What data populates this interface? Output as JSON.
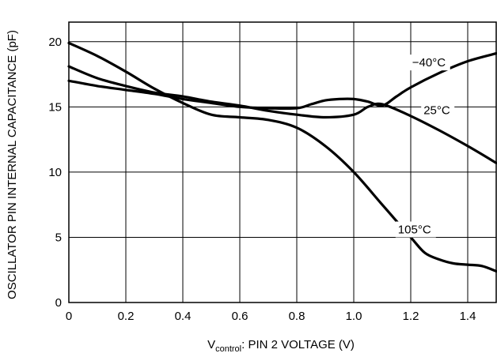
{
  "chart_data": {
    "type": "line",
    "title": "",
    "xlabel": {
      "main": "V",
      "sub": "control",
      "rest": ": PIN 2 VOLTAGE (V)"
    },
    "ylabel": "OSCILLATOR PIN INTERNAL CAPACITANCE (pF)",
    "xlim": [
      0,
      1.5
    ],
    "ylim": [
      0,
      21.5
    ],
    "x_ticks": [
      0,
      0.2,
      0.4,
      0.6,
      0.8,
      1.0,
      1.2,
      1.4
    ],
    "x_tick_labels": [
      "0",
      "0.2",
      "0.4",
      "0.6",
      "0.8",
      "1.0",
      "1.2",
      "1.4"
    ],
    "y_ticks": [
      0,
      5,
      10,
      15,
      20
    ],
    "y_tick_labels": [
      "0",
      "5",
      "10",
      "15",
      "20"
    ],
    "grid": true,
    "legend": "none",
    "series": [
      {
        "name": "−40°C",
        "x": [
          0,
          0.1,
          0.2,
          0.3,
          0.4,
          0.5,
          0.6,
          0.7,
          0.8,
          0.85,
          0.9,
          0.95,
          1.0,
          1.05,
          1.1,
          1.15,
          1.2,
          1.3,
          1.4,
          1.5
        ],
        "y": [
          17.0,
          16.6,
          16.3,
          16.0,
          15.6,
          15.3,
          15.0,
          14.9,
          14.9,
          15.2,
          15.5,
          15.6,
          15.6,
          15.4,
          15.1,
          15.8,
          16.5,
          17.6,
          18.5,
          19.1
        ]
      },
      {
        "name": "25°C",
        "x": [
          0,
          0.1,
          0.2,
          0.3,
          0.4,
          0.5,
          0.6,
          0.7,
          0.8,
          0.9,
          1.0,
          1.05,
          1.1,
          1.2,
          1.3,
          1.4,
          1.5
        ],
        "y": [
          18.1,
          17.2,
          16.6,
          16.1,
          15.8,
          15.4,
          15.1,
          14.7,
          14.4,
          14.2,
          14.4,
          15.0,
          15.2,
          14.3,
          13.2,
          12.0,
          10.7
        ]
      },
      {
        "name": "105°C",
        "x": [
          0,
          0.1,
          0.2,
          0.3,
          0.4,
          0.5,
          0.6,
          0.7,
          0.8,
          0.9,
          1.0,
          1.1,
          1.2,
          1.25,
          1.3,
          1.35,
          1.4,
          1.45,
          1.5
        ],
        "y": [
          19.9,
          18.9,
          17.7,
          16.4,
          15.3,
          14.4,
          14.2,
          14.0,
          13.4,
          12.0,
          10.0,
          7.5,
          5.0,
          3.8,
          3.3,
          3.0,
          2.9,
          2.8,
          2.4
        ]
      }
    ],
    "annotations": [
      {
        "text": "−40°C",
        "series": "−40°C",
        "x": 1.205,
        "y": 18.1
      },
      {
        "text": "25°C",
        "series": "25°C",
        "x": 1.245,
        "y": 14.45
      },
      {
        "text": "105°C",
        "series": "105°C",
        "x": 1.155,
        "y": 5.3
      }
    ]
  }
}
